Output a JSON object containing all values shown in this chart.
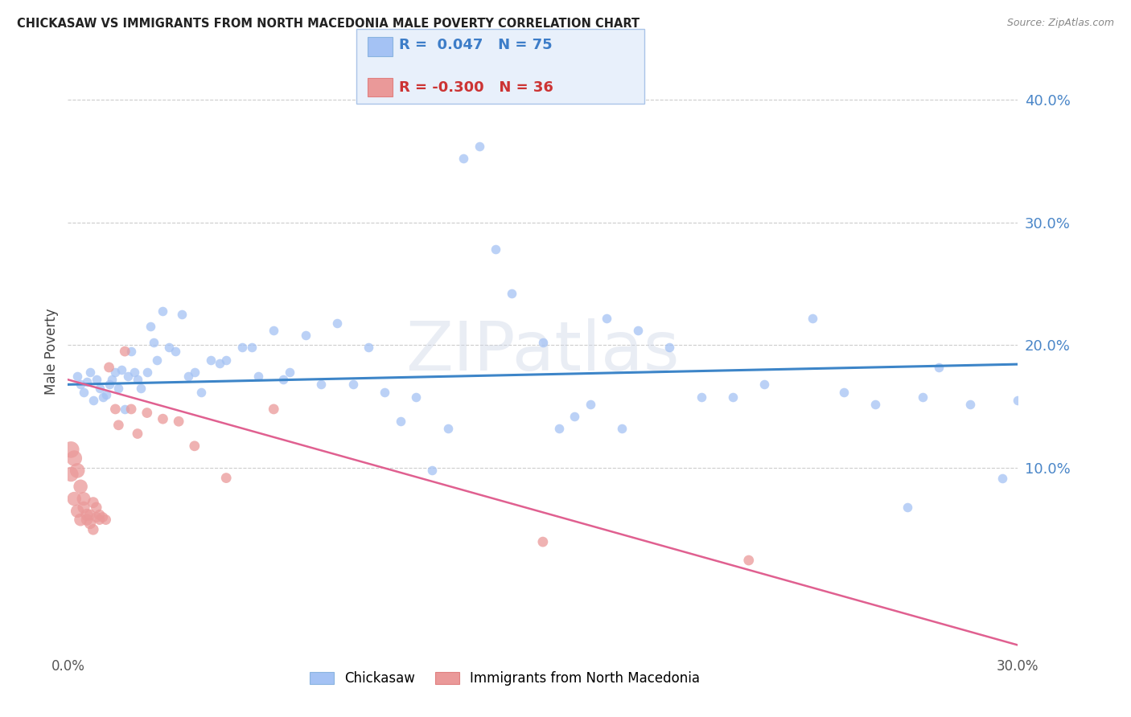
{
  "title": "CHICKASAW VS IMMIGRANTS FROM NORTH MACEDONIA MALE POVERTY CORRELATION CHART",
  "source": "Source: ZipAtlas.com",
  "ylabel": "Male Poverty",
  "right_yticks": [
    "40.0%",
    "30.0%",
    "20.0%",
    "10.0%"
  ],
  "right_ytick_vals": [
    0.4,
    0.3,
    0.2,
    0.1
  ],
  "xlim": [
    0.0,
    0.3
  ],
  "ylim": [
    -0.05,
    0.44
  ],
  "chickasaw_color": "#a4c2f4",
  "macedonia_color": "#ea9999",
  "background_color": "#ffffff",
  "grid_color": "#cccccc",
  "chickasaw_line_color": "#3d85c8",
  "macedonia_line_color": "#e06090",
  "watermark": "ZIPatlas",
  "legend_box_color": "#e8f0fb",
  "legend_border_color": "#aac4e8",
  "chickasaw_scatter_x": [
    0.003,
    0.004,
    0.005,
    0.006,
    0.007,
    0.008,
    0.009,
    0.01,
    0.011,
    0.012,
    0.013,
    0.014,
    0.015,
    0.016,
    0.017,
    0.018,
    0.019,
    0.02,
    0.021,
    0.022,
    0.023,
    0.025,
    0.026,
    0.027,
    0.028,
    0.03,
    0.032,
    0.034,
    0.036,
    0.038,
    0.04,
    0.042,
    0.045,
    0.048,
    0.05,
    0.055,
    0.058,
    0.06,
    0.065,
    0.068,
    0.07,
    0.075,
    0.08,
    0.085,
    0.09,
    0.095,
    0.1,
    0.105,
    0.11,
    0.115,
    0.12,
    0.125,
    0.13,
    0.135,
    0.14,
    0.15,
    0.155,
    0.16,
    0.165,
    0.17,
    0.175,
    0.18,
    0.19,
    0.2,
    0.21,
    0.22,
    0.235,
    0.245,
    0.255,
    0.265,
    0.27,
    0.275,
    0.285,
    0.295,
    0.3
  ],
  "chickasaw_scatter_y": [
    0.175,
    0.168,
    0.162,
    0.17,
    0.178,
    0.155,
    0.172,
    0.165,
    0.158,
    0.16,
    0.168,
    0.172,
    0.178,
    0.165,
    0.18,
    0.148,
    0.175,
    0.195,
    0.178,
    0.172,
    0.165,
    0.178,
    0.215,
    0.202,
    0.188,
    0.228,
    0.198,
    0.195,
    0.225,
    0.175,
    0.178,
    0.162,
    0.188,
    0.185,
    0.188,
    0.198,
    0.198,
    0.175,
    0.212,
    0.172,
    0.178,
    0.208,
    0.168,
    0.218,
    0.168,
    0.198,
    0.162,
    0.138,
    0.158,
    0.098,
    0.132,
    0.352,
    0.362,
    0.278,
    0.242,
    0.202,
    0.132,
    0.142,
    0.152,
    0.222,
    0.132,
    0.212,
    0.198,
    0.158,
    0.158,
    0.168,
    0.222,
    0.162,
    0.152,
    0.068,
    0.158,
    0.182,
    0.152,
    0.092,
    0.155
  ],
  "macedonial_scatter_x": [
    0.001,
    0.001,
    0.002,
    0.002,
    0.003,
    0.003,
    0.004,
    0.004,
    0.005,
    0.005,
    0.006,
    0.006,
    0.007,
    0.007,
    0.008,
    0.008,
    0.009,
    0.009,
    0.01,
    0.01,
    0.011,
    0.012,
    0.013,
    0.015,
    0.016,
    0.018,
    0.02,
    0.022,
    0.025,
    0.03,
    0.035,
    0.04,
    0.05,
    0.065,
    0.15,
    0.215
  ],
  "macedonial_scatter_y": [
    0.115,
    0.095,
    0.108,
    0.075,
    0.098,
    0.065,
    0.085,
    0.058,
    0.075,
    0.068,
    0.062,
    0.058,
    0.055,
    0.062,
    0.072,
    0.05,
    0.068,
    0.06,
    0.062,
    0.058,
    0.06,
    0.058,
    0.182,
    0.148,
    0.135,
    0.195,
    0.148,
    0.128,
    0.145,
    0.14,
    0.138,
    0.118,
    0.092,
    0.148,
    0.04,
    0.025
  ],
  "macedonial_scatter_s": [
    220,
    180,
    200,
    160,
    180,
    140,
    160,
    130,
    150,
    120,
    120,
    110,
    105,
    100,
    100,
    95,
    95,
    90,
    90,
    85,
    85,
    85,
    85,
    85,
    85,
    85,
    85,
    85,
    85,
    85,
    85,
    85,
    85,
    85,
    85,
    85
  ],
  "chickasaw_line_intercept": 0.168,
  "chickasaw_line_slope": 0.055,
  "macedonia_line_intercept": 0.172,
  "macedonia_line_slope": -0.72
}
